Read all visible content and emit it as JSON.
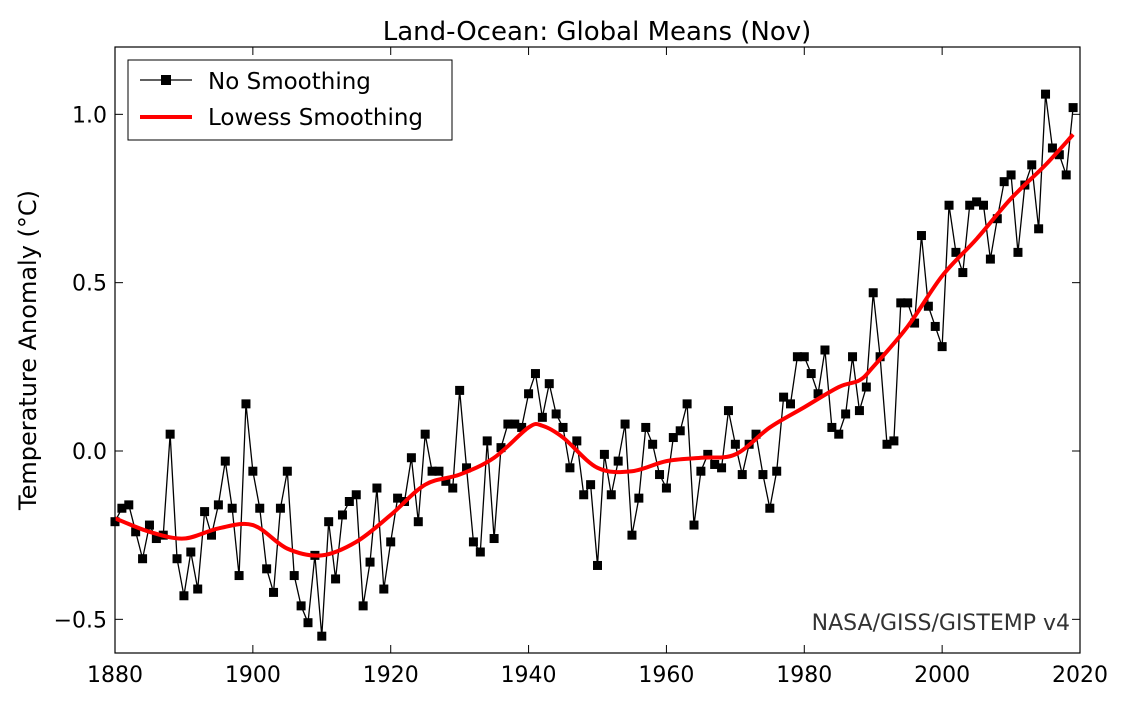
{
  "chart_data": {
    "type": "line",
    "title": "Land-Ocean: Global Means (Nov)",
    "xlabel": "",
    "ylabel": "Temperature Anomaly (°C)",
    "xlim": [
      1880,
      2020
    ],
    "ylim": [
      -0.6,
      1.2
    ],
    "xticks": [
      1880,
      1900,
      1920,
      1940,
      1960,
      1980,
      2000,
      2020
    ],
    "yticks": [
      -0.5,
      0.0,
      0.5,
      1.0
    ],
    "ytick_labels": [
      "−0.5",
      "0.0",
      "0.5",
      "1.0"
    ],
    "grid": false,
    "legend_placement": "top-left",
    "annotation": "NASA/GISS/GISTEMP v4",
    "series": [
      {
        "name": "No Smoothing",
        "color": "#000000",
        "marker": "square",
        "x_start": 1880,
        "values": [
          -0.21,
          -0.17,
          -0.16,
          -0.24,
          -0.32,
          -0.22,
          -0.26,
          -0.25,
          0.05,
          -0.32,
          -0.43,
          -0.3,
          -0.41,
          -0.18,
          -0.25,
          -0.16,
          -0.03,
          -0.17,
          -0.37,
          0.14,
          -0.06,
          -0.17,
          -0.35,
          -0.42,
          -0.17,
          -0.06,
          -0.37,
          -0.46,
          -0.51,
          -0.31,
          -0.55,
          -0.21,
          -0.38,
          -0.19,
          -0.15,
          -0.13,
          -0.46,
          -0.33,
          -0.11,
          -0.41,
          -0.27,
          -0.14,
          -0.15,
          -0.02,
          -0.21,
          0.05,
          -0.06,
          -0.06,
          -0.09,
          -0.11,
          0.18,
          -0.05,
          -0.27,
          -0.3,
          0.03,
          -0.26,
          0.01,
          0.08,
          0.08,
          0.07,
          0.17,
          0.23,
          0.1,
          0.2,
          0.11,
          0.07,
          -0.05,
          0.03,
          -0.13,
          -0.1,
          -0.34,
          -0.01,
          -0.13,
          -0.03,
          0.08,
          -0.25,
          -0.14,
          0.07,
          0.02,
          -0.07,
          -0.11,
          0.04,
          0.06,
          0.14,
          -0.22,
          -0.06,
          -0.01,
          -0.04,
          -0.05,
          0.12,
          0.02,
          -0.07,
          0.02,
          0.05,
          -0.07,
          -0.17,
          -0.06,
          0.16,
          0.14,
          0.28,
          0.28,
          0.23,
          0.17,
          0.3,
          0.07,
          0.05,
          0.11,
          0.28,
          0.12,
          0.19,
          0.47,
          0.28,
          0.02,
          0.03,
          0.44,
          0.44,
          0.38,
          0.64,
          0.43,
          0.37,
          0.31,
          0.73,
          0.59,
          0.53,
          0.73,
          0.74,
          0.73,
          0.57,
          0.69,
          0.8,
          0.82,
          0.59,
          0.79,
          0.85,
          0.66,
          1.06,
          0.9,
          0.88,
          0.82,
          1.02
        ]
      },
      {
        "name": "Lowess Smoothing",
        "color": "#ff0000",
        "x": [
          1880,
          1885,
          1890,
          1895,
          1900,
          1905,
          1910,
          1915,
          1920,
          1925,
          1930,
          1935,
          1940,
          1942,
          1945,
          1950,
          1955,
          1960,
          1965,
          1970,
          1975,
          1980,
          1985,
          1988,
          1990,
          1995,
          2000,
          2005,
          2010,
          2015,
          2019
        ],
        "values": [
          -0.2,
          -0.24,
          -0.26,
          -0.23,
          -0.22,
          -0.29,
          -0.31,
          -0.27,
          -0.19,
          -0.1,
          -0.07,
          -0.02,
          0.07,
          0.075,
          0.04,
          -0.05,
          -0.06,
          -0.03,
          -0.02,
          -0.01,
          0.07,
          0.13,
          0.19,
          0.21,
          0.25,
          0.37,
          0.52,
          0.63,
          0.75,
          0.85,
          0.94
        ]
      }
    ]
  }
}
